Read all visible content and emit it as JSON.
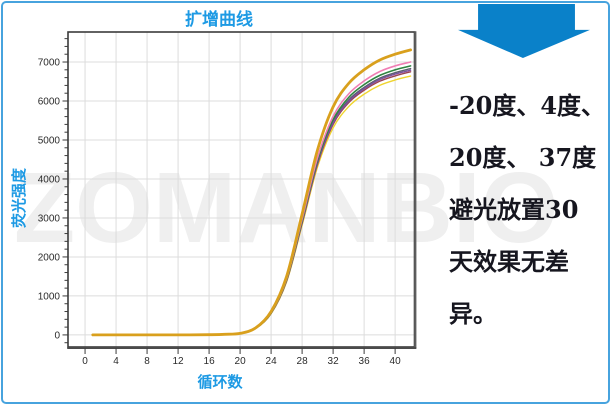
{
  "title": "扩增曲线",
  "watermark": "ZOMANBIO",
  "colors": {
    "accent_blue": "#1D9AE4",
    "arrow_blue": "#0A81C9",
    "frame_blue": "#47A3DE",
    "annotation_text": "#16161F",
    "watermark_gray": "#EFEFEF",
    "grid": "#DCDCDC",
    "plot_border": "#3B3B3B",
    "tick_text": "#2B2B2B"
  },
  "arrow": {
    "direction": "down"
  },
  "annotation_panel": {
    "full_text": "-20度、4度、20度、37度避光放置30天效果无差异。",
    "lines": [
      "-20度、4度、",
      "20度、 37度",
      "避光放置30",
      "天效果无差",
      "异。"
    ]
  },
  "chart_data": {
    "type": "line",
    "title": "扩增曲线",
    "xlabel": "循环数",
    "ylabel": "荧光强度",
    "xlim": [
      -2.2,
      42.5
    ],
    "ylim": [
      -310,
      7770
    ],
    "grid": true,
    "legend": "none",
    "x_ticks": [
      0,
      4,
      8,
      12,
      16,
      20,
      24,
      28,
      32,
      36,
      40
    ],
    "y_ticks": [
      0,
      1000,
      2000,
      3000,
      4000,
      5000,
      6000,
      7000
    ],
    "y_grid": [
      0,
      1000,
      2000,
      3000,
      4000,
      5000,
      6000,
      7000
    ],
    "y_minor_step": 200,
    "x_samples": [
      1,
      4,
      8,
      12,
      16,
      18,
      20,
      22,
      24,
      26,
      28,
      30,
      32,
      34,
      36,
      38,
      40,
      42
    ],
    "series": [
      {
        "name": "curve-yellow",
        "color": "#EFD42F",
        "width": 1.4,
        "values": [
          0,
          0,
          0,
          0,
          5,
          14,
          36,
          163,
          545,
          1360,
          2815,
          4315,
          5310,
          5855,
          6175,
          6400,
          6540,
          6640
        ]
      },
      {
        "name": "curve-maroon",
        "color": "#9C4250",
        "width": 1.4,
        "values": [
          0,
          0,
          0,
          0,
          5,
          14,
          37,
          166,
          554,
          1385,
          2860,
          4385,
          5400,
          5955,
          6275,
          6505,
          6645,
          6750
        ]
      },
      {
        "name": "curve-slate",
        "color": "#5A5F6E",
        "width": 1.4,
        "values": [
          0,
          0,
          0,
          0,
          5,
          14,
          37,
          168,
          560,
          1400,
          2895,
          4435,
          5465,
          6025,
          6350,
          6585,
          6725,
          6830
        ]
      },
      {
        "name": "curve-purple",
        "color": "#7B4F9E",
        "width": 1.4,
        "values": [
          0,
          0,
          0,
          0,
          5,
          14,
          37,
          167,
          557,
          1395,
          2880,
          4415,
          5435,
          5990,
          6315,
          6550,
          6690,
          6790
        ]
      },
      {
        "name": "curve-green",
        "color": "#2E8440",
        "width": 1.6,
        "values": [
          0,
          0,
          0,
          0,
          5,
          14,
          38,
          170,
          565,
          1415,
          2925,
          4485,
          5520,
          6090,
          6420,
          6655,
          6800,
          6900
        ]
      },
      {
        "name": "curve-pink",
        "color": "#F07EB4",
        "width": 1.6,
        "values": [
          0,
          0,
          0,
          0,
          5,
          14,
          38,
          172,
          575,
          1435,
          2970,
          4550,
          5605,
          6180,
          6515,
          6755,
          6900,
          7000
        ]
      },
      {
        "name": "curve-gold",
        "color": "#D9A01D",
        "width": 2.8,
        "values": [
          0,
          0,
          0,
          0,
          5,
          15,
          40,
          180,
          600,
          1500,
          3100,
          4750,
          5850,
          6450,
          6800,
          7050,
          7200,
          7310
        ]
      }
    ]
  }
}
